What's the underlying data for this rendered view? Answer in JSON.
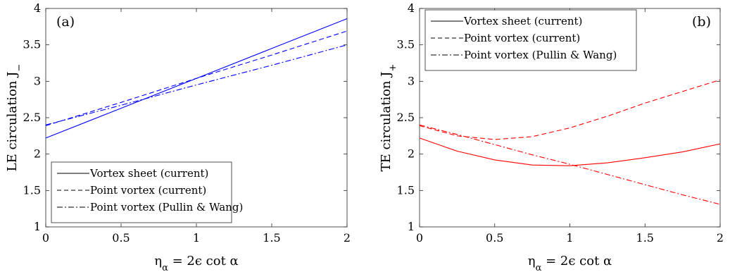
{
  "chart_data": [
    {
      "type": "line",
      "panel_label": "(a)",
      "xlabel": "η_α = 2ϵ cot α",
      "ylabel": "LE circulation J_−",
      "xlim": [
        0,
        2
      ],
      "ylim": [
        1,
        4
      ],
      "xticks": [
        0,
        0.5,
        1,
        1.5,
        2
      ],
      "xticklabels": [
        "0",
        "0.5",
        "1",
        "1.5",
        "2"
      ],
      "yticks": [
        1,
        1.5,
        2,
        2.5,
        3,
        3.5,
        4
      ],
      "yticklabels": [
        "1",
        "1.5",
        "2",
        "2.5",
        "3",
        "3.5",
        "4"
      ],
      "color": "#0000ff",
      "legend_position": "bottom-left",
      "grid": false,
      "series": [
        {
          "name": "Vortex sheet (current)",
          "dash": "solid",
          "x": [
            0,
            0.5,
            1,
            1.5,
            2
          ],
          "y": [
            2.22,
            2.63,
            3.04,
            3.45,
            3.86
          ]
        },
        {
          "name": "Point vortex (current)",
          "dash": "dashed",
          "x": [
            0,
            0.5,
            1,
            1.5,
            2
          ],
          "y": [
            2.39,
            2.71,
            3.04,
            3.36,
            3.69
          ]
        },
        {
          "name": "Point vortex (Pullin & Wang)",
          "dash": "dashdot",
          "x": [
            0,
            0.5,
            1,
            1.5,
            2
          ],
          "y": [
            2.4,
            2.67,
            2.95,
            3.22,
            3.5
          ]
        }
      ]
    },
    {
      "type": "line",
      "panel_label": "(b)",
      "xlabel": "η_α = 2ϵ cot α",
      "ylabel": "TE circulation J_+",
      "xlim": [
        0,
        2
      ],
      "ylim": [
        1,
        4
      ],
      "xticks": [
        0,
        0.5,
        1,
        1.5,
        2
      ],
      "xticklabels": [
        "0",
        "0.5",
        "1",
        "1.5",
        "2"
      ],
      "yticks": [
        1,
        1.5,
        2,
        2.5,
        3,
        3.5,
        4
      ],
      "yticklabels": [
        "1",
        "1.5",
        "2",
        "2.5",
        "3",
        "3.5",
        "4"
      ],
      "color": "#ff0000",
      "legend_position": "top-left",
      "grid": false,
      "series": [
        {
          "name": "Vortex sheet (current)",
          "dash": "solid",
          "x": [
            0,
            0.25,
            0.5,
            0.75,
            1,
            1.25,
            1.5,
            1.75,
            2
          ],
          "y": [
            2.22,
            2.04,
            1.92,
            1.85,
            1.84,
            1.88,
            1.95,
            2.03,
            2.14
          ]
        },
        {
          "name": "Point vortex (current)",
          "dash": "dashed",
          "x": [
            0,
            0.25,
            0.5,
            0.75,
            1,
            1.25,
            1.5,
            1.75,
            2
          ],
          "y": [
            2.39,
            2.25,
            2.2,
            2.24,
            2.36,
            2.52,
            2.7,
            2.86,
            3.02
          ]
        },
        {
          "name": "Point vortex (Pullin & Wang)",
          "dash": "dashdot",
          "x": [
            0,
            0.25,
            0.5,
            0.75,
            1,
            1.25,
            1.5,
            1.75,
            2
          ],
          "y": [
            2.4,
            2.27,
            2.13,
            1.99,
            1.86,
            1.72,
            1.58,
            1.44,
            1.31
          ]
        }
      ]
    }
  ]
}
